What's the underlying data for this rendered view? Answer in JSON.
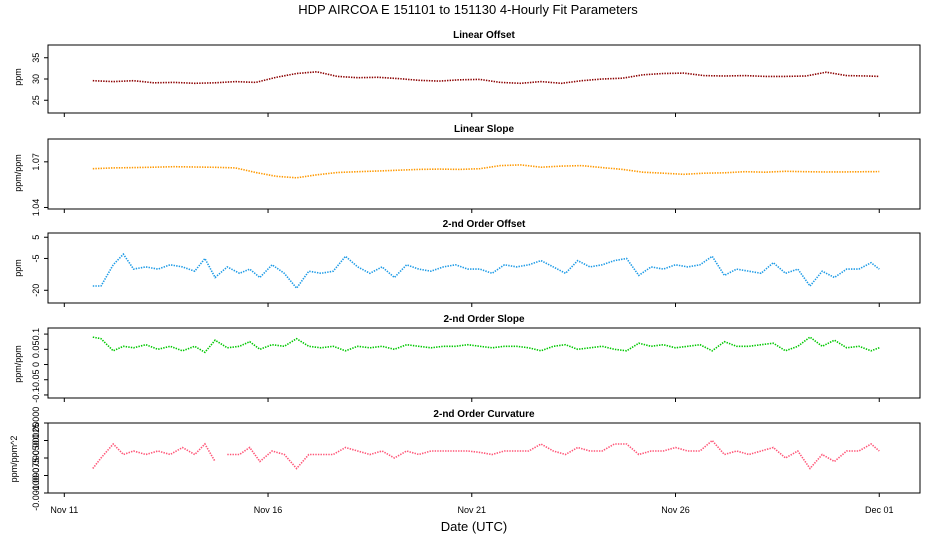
{
  "title": "HDP   AIRCOA E   151101 to 151130   4-Hourly Fit Parameters",
  "xlabel": "Date (UTC)",
  "x_ticks": [
    {
      "label": "Nov 11",
      "day": 11
    },
    {
      "label": "Nov 16",
      "day": 16
    },
    {
      "label": "Nov 21",
      "day": 21
    },
    {
      "label": "Nov 26",
      "day": 26
    },
    {
      "label": "Dec 01",
      "day": 31
    }
  ],
  "chart_data": [
    {
      "type": "line",
      "title": "Linear Offset",
      "ylabel": "ppm",
      "ylim": [
        22,
        38
      ],
      "yticks": [
        25,
        30,
        35
      ],
      "color": "#8b0000",
      "series": [
        {
          "name": "Linear Offset",
          "x": [
            11.7,
            12.2,
            12.7,
            13.2,
            13.7,
            14.2,
            14.7,
            15.2,
            15.7,
            16.2,
            16.7,
            17.2,
            17.7,
            18.2,
            18.7,
            19.2,
            19.7,
            20.2,
            20.7,
            21.2,
            21.7,
            22.2,
            22.7,
            23.2,
            23.7,
            24.2,
            24.7,
            25.2,
            25.7,
            26.2,
            26.7,
            27.2,
            27.7,
            28.2,
            28.7,
            29.2,
            29.7,
            30.2,
            30.7,
            31.0
          ],
          "y": [
            29.6,
            29.4,
            29.6,
            29.1,
            29.2,
            29.0,
            29.1,
            29.4,
            29.2,
            30.4,
            31.3,
            31.7,
            30.6,
            30.3,
            30.4,
            30.1,
            29.7,
            29.5,
            29.8,
            29.9,
            29.2,
            29.0,
            29.4,
            29.0,
            29.6,
            30.0,
            30.2,
            31.0,
            31.3,
            31.4,
            30.8,
            30.7,
            30.8,
            30.6,
            30.6,
            30.7,
            31.6,
            30.8,
            30.7,
            30.6
          ]
        }
      ]
    },
    {
      "type": "line",
      "title": "Linear Slope",
      "ylabel": "ppm/ppm",
      "ylim": [
        1.039,
        1.085
      ],
      "yticks": [
        1.04,
        1.07
      ],
      "color": "#ff9900",
      "series": [
        {
          "name": "Linear Slope",
          "x": [
            11.7,
            12.2,
            12.7,
            13.2,
            13.7,
            14.2,
            14.7,
            15.2,
            15.7,
            16.2,
            16.7,
            17.2,
            17.7,
            18.2,
            18.7,
            19.2,
            19.7,
            20.2,
            20.7,
            21.2,
            21.7,
            22.2,
            22.7,
            23.2,
            23.7,
            24.2,
            24.7,
            25.2,
            25.7,
            26.2,
            26.7,
            27.2,
            27.7,
            28.2,
            28.7,
            29.2,
            29.7,
            30.2,
            30.7,
            31.0
          ],
          "y": [
            1.0655,
            1.066,
            1.0662,
            1.0665,
            1.0668,
            1.0666,
            1.0664,
            1.066,
            1.063,
            1.0605,
            1.0595,
            1.0615,
            1.063,
            1.0635,
            1.064,
            1.0645,
            1.065,
            1.0652,
            1.065,
            1.0655,
            1.0675,
            1.068,
            1.0665,
            1.0672,
            1.0675,
            1.0662,
            1.065,
            1.0632,
            1.0625,
            1.0618,
            1.0625,
            1.0628,
            1.0635,
            1.0632,
            1.0638,
            1.0635,
            1.0633,
            1.0634,
            1.0635,
            1.0636
          ]
        }
      ]
    },
    {
      "type": "line",
      "title": "2-nd Order Offset",
      "ylabel": "ppm",
      "ylim": [
        -26,
        7
      ],
      "yticks": [
        5,
        -5,
        -20
      ],
      "color": "#1e9be6",
      "series": [
        {
          "name": "2-nd Order Offset",
          "x": [
            11.7,
            11.9,
            12.2,
            12.45,
            12.7,
            13.0,
            13.3,
            13.6,
            13.9,
            14.2,
            14.45,
            14.7,
            15.0,
            15.3,
            15.55,
            15.8,
            16.1,
            16.4,
            16.7,
            17.0,
            17.3,
            17.6,
            17.9,
            18.2,
            18.5,
            18.8,
            19.1,
            19.4,
            19.7,
            20.0,
            20.3,
            20.6,
            20.9,
            21.2,
            21.5,
            21.8,
            22.1,
            22.4,
            22.7,
            23.0,
            23.3,
            23.6,
            23.9,
            24.2,
            24.5,
            24.8,
            25.1,
            25.4,
            25.7,
            26.0,
            26.3,
            26.6,
            26.9,
            27.2,
            27.5,
            27.8,
            28.1,
            28.4,
            28.7,
            29.0,
            29.3,
            29.6,
            29.9,
            30.2,
            30.5,
            30.8,
            31.0
          ],
          "y": [
            -18,
            -18,
            -8,
            -3,
            -10,
            -9,
            -10,
            -8,
            -9,
            -11,
            -5,
            -14,
            -9,
            -12,
            -10,
            -14,
            -8,
            -12,
            -19,
            -11,
            -12,
            -11,
            -4,
            -9,
            -12,
            -9,
            -14,
            -8,
            -10,
            -11,
            -9,
            -8,
            -10,
            -10,
            -12,
            -8,
            -9,
            -8,
            -6,
            -9,
            -12,
            -6,
            -9,
            -8,
            -6,
            -5,
            -13,
            -9,
            -10,
            -8,
            -9,
            -8,
            -4,
            -13,
            -10,
            -11,
            -12,
            -7,
            -12,
            -10,
            -18,
            -11,
            -14,
            -10,
            -10,
            -7,
            -10
          ]
        }
      ]
    },
    {
      "type": "line",
      "title": "2-nd Order Slope",
      "ylabel": "ppm/ppm",
      "ylim": [
        -0.11,
        0.12
      ],
      "yticks": [
        0.1,
        0.05,
        0.0,
        -0.05,
        -0.1
      ],
      "color": "#00c800",
      "series": [
        {
          "name": "2-nd Order Slope",
          "x": [
            11.7,
            11.9,
            12.2,
            12.45,
            12.7,
            13.0,
            13.3,
            13.6,
            13.9,
            14.2,
            14.45,
            14.7,
            15.0,
            15.3,
            15.55,
            15.8,
            16.1,
            16.4,
            16.7,
            17.0,
            17.3,
            17.6,
            17.9,
            18.2,
            18.5,
            18.8,
            19.1,
            19.4,
            19.7,
            20.0,
            20.3,
            20.6,
            20.9,
            21.2,
            21.5,
            21.8,
            22.1,
            22.4,
            22.7,
            23.0,
            23.3,
            23.6,
            23.9,
            24.2,
            24.5,
            24.8,
            25.1,
            25.4,
            25.7,
            26.0,
            26.3,
            26.6,
            26.9,
            27.2,
            27.5,
            27.8,
            28.1,
            28.4,
            28.7,
            29.0,
            29.3,
            29.6,
            29.9,
            30.2,
            30.5,
            30.8,
            31.0
          ],
          "y": [
            0.09,
            0.085,
            0.045,
            0.06,
            0.055,
            0.065,
            0.05,
            0.06,
            0.045,
            0.06,
            0.04,
            0.08,
            0.055,
            0.06,
            0.075,
            0.05,
            0.065,
            0.06,
            0.085,
            0.06,
            0.055,
            0.06,
            0.045,
            0.06,
            0.055,
            0.06,
            0.05,
            0.065,
            0.06,
            0.055,
            0.06,
            0.06,
            0.065,
            0.06,
            0.055,
            0.06,
            0.06,
            0.055,
            0.045,
            0.06,
            0.065,
            0.05,
            0.055,
            0.06,
            0.05,
            0.045,
            0.07,
            0.06,
            0.065,
            0.055,
            0.06,
            0.065,
            0.045,
            0.075,
            0.06,
            0.06,
            0.065,
            0.07,
            0.045,
            0.06,
            0.09,
            0.06,
            0.08,
            0.055,
            0.06,
            0.045,
            0.055
          ]
        }
      ]
    },
    {
      "type": "line",
      "title": "2-nd Order Curvature",
      "ylabel": "ppm/ppm^2",
      "ylim": [
        -0.001,
        0.0
      ],
      "yticks": [
        0.0,
        -0.00025,
        -0.0005,
        -0.00075,
        -0.001
      ],
      "ytick_labels": [
        "0.00000",
        "-0.00025",
        "-0.00050",
        "-0.00075",
        "-0.00100"
      ],
      "color": "#ff5577",
      "gap_after_x": 14.75,
      "series": [
        {
          "name": "2-nd Order Curvature",
          "x": [
            11.7,
            11.9,
            12.2,
            12.45,
            12.7,
            13.0,
            13.3,
            13.6,
            13.9,
            14.2,
            14.45,
            14.7,
            15.0,
            15.3,
            15.55,
            15.8,
            16.1,
            16.4,
            16.7,
            17.0,
            17.3,
            17.6,
            17.9,
            18.2,
            18.5,
            18.8,
            19.1,
            19.4,
            19.7,
            20.0,
            20.3,
            20.6,
            20.9,
            21.2,
            21.5,
            21.8,
            22.1,
            22.4,
            22.7,
            23.0,
            23.3,
            23.6,
            23.9,
            24.2,
            24.5,
            24.8,
            25.1,
            25.4,
            25.7,
            26.0,
            26.3,
            26.6,
            26.9,
            27.2,
            27.5,
            27.8,
            28.1,
            28.4,
            28.7,
            29.0,
            29.3,
            29.6,
            29.9,
            30.2,
            30.5,
            30.8,
            31.0
          ],
          "y": [
            -0.00065,
            -0.0005,
            -0.0003,
            -0.00045,
            -0.0004,
            -0.00045,
            -0.0004,
            -0.00045,
            -0.00035,
            -0.00045,
            -0.0003,
            -0.00055,
            -0.00045,
            -0.00045,
            -0.00035,
            -0.00055,
            -0.0004,
            -0.00045,
            -0.00065,
            -0.00045,
            -0.00045,
            -0.00045,
            -0.00035,
            -0.0004,
            -0.00045,
            -0.0004,
            -0.0005,
            -0.0004,
            -0.00045,
            -0.0004,
            -0.0004,
            -0.0004,
            -0.0004,
            -0.00042,
            -0.00045,
            -0.0004,
            -0.0004,
            -0.0004,
            -0.0003,
            -0.0004,
            -0.00045,
            -0.00035,
            -0.0004,
            -0.0004,
            -0.0003,
            -0.0003,
            -0.00045,
            -0.0004,
            -0.0004,
            -0.00035,
            -0.0004,
            -0.0004,
            -0.00025,
            -0.00045,
            -0.0004,
            -0.00045,
            -0.0004,
            -0.00035,
            -0.0005,
            -0.0004,
            -0.00065,
            -0.00045,
            -0.00055,
            -0.0004,
            -0.0004,
            -0.0003,
            -0.0004
          ]
        }
      ]
    }
  ]
}
